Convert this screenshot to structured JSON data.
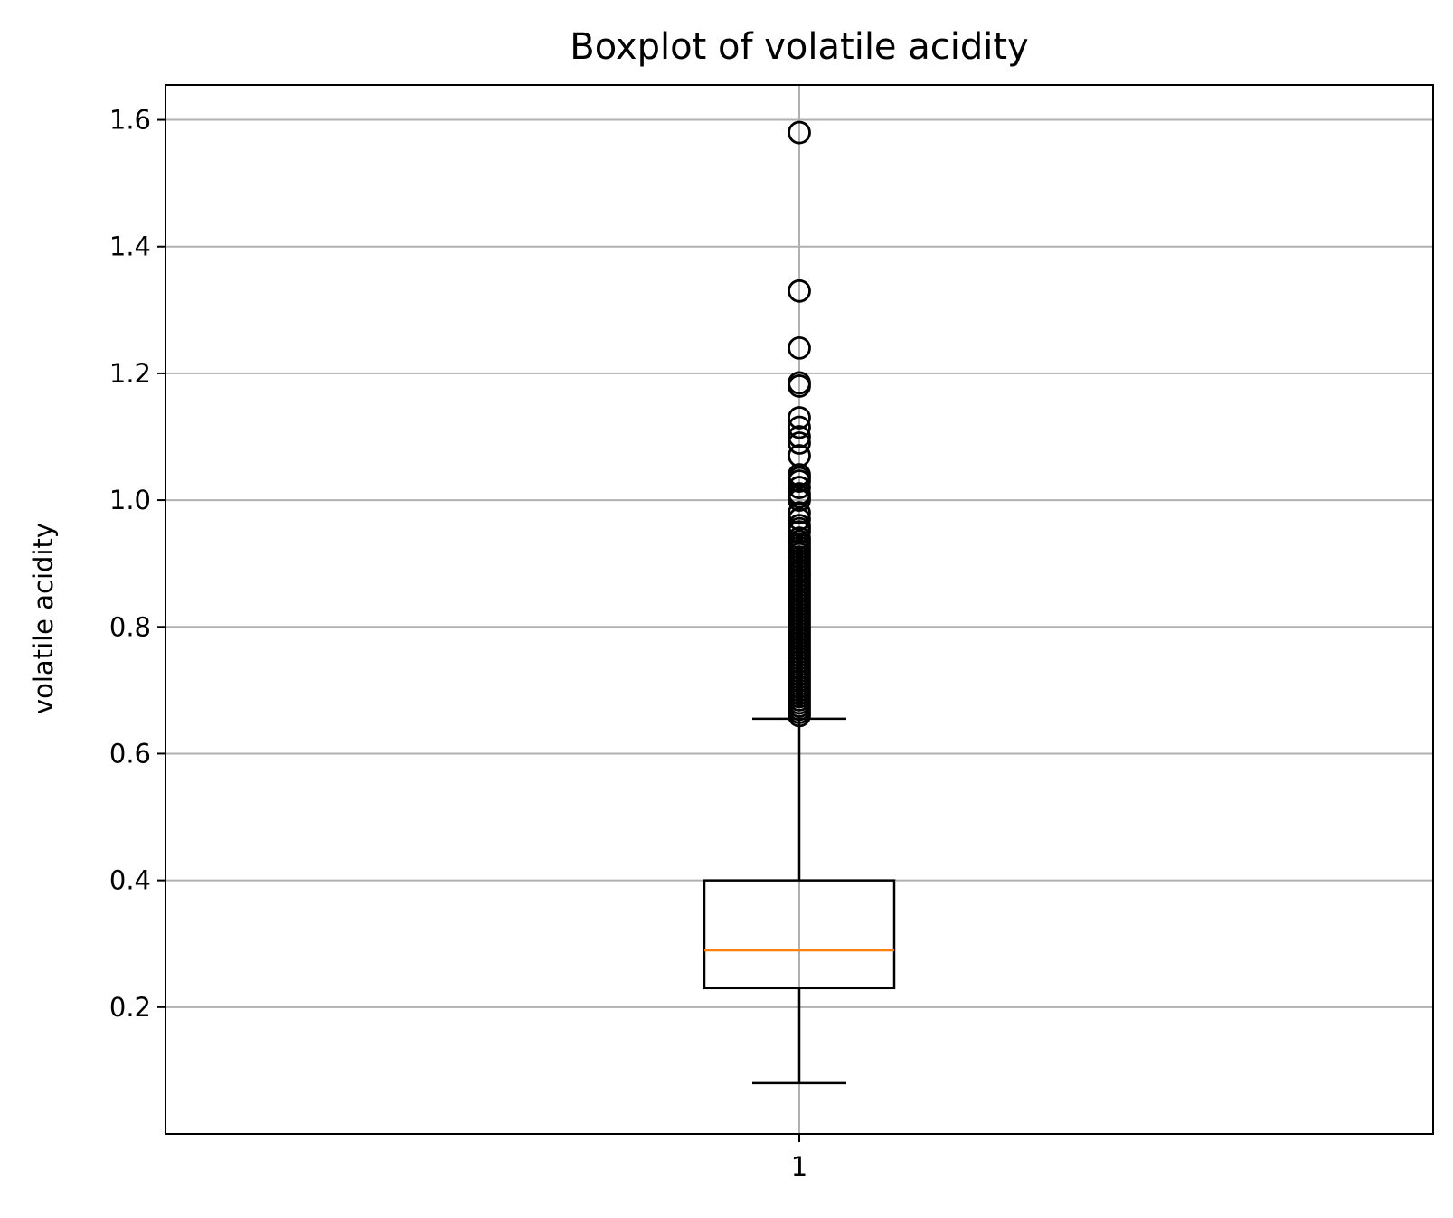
{
  "chart_data": {
    "type": "boxplot",
    "title": "Boxplot of volatile acidity",
    "xlabel": "",
    "ylabel": "volatile acidity",
    "categories": [
      "1"
    ],
    "ylim": [
      0.0,
      1.655
    ],
    "yticks": [
      "0.2",
      "0.4",
      "0.6",
      "0.8",
      "1.0",
      "1.2",
      "1.4",
      "1.6"
    ],
    "grid": true,
    "box": {
      "whisker_low": 0.08,
      "q1": 0.23,
      "median": 0.29,
      "q3": 0.4,
      "whisker_high": 0.655
    },
    "outliers": [
      1.58,
      1.33,
      1.24,
      1.185,
      1.18,
      1.13,
      1.115,
      1.1,
      1.09,
      1.07,
      1.04,
      1.035,
      1.03,
      1.02,
      1.01,
      1.005,
      1.0,
      0.98,
      0.97,
      0.96,
      0.955,
      0.95,
      0.94,
      0.935,
      0.93,
      0.925,
      0.92,
      0.915,
      0.91,
      0.905,
      0.9,
      0.895,
      0.89,
      0.885,
      0.88,
      0.875,
      0.87,
      0.865,
      0.86,
      0.855,
      0.85,
      0.845,
      0.84,
      0.835,
      0.83,
      0.825,
      0.82,
      0.815,
      0.81,
      0.805,
      0.8,
      0.795,
      0.79,
      0.785,
      0.78,
      0.775,
      0.77,
      0.765,
      0.76,
      0.755,
      0.75,
      0.745,
      0.74,
      0.735,
      0.73,
      0.725,
      0.72,
      0.715,
      0.71,
      0.705,
      0.7,
      0.695,
      0.69,
      0.685,
      0.68,
      0.675,
      0.67,
      0.665,
      0.66
    ],
    "colors": {
      "median": "#ff7f0e",
      "box": "#000000",
      "grid": "#b0b0b0"
    }
  }
}
